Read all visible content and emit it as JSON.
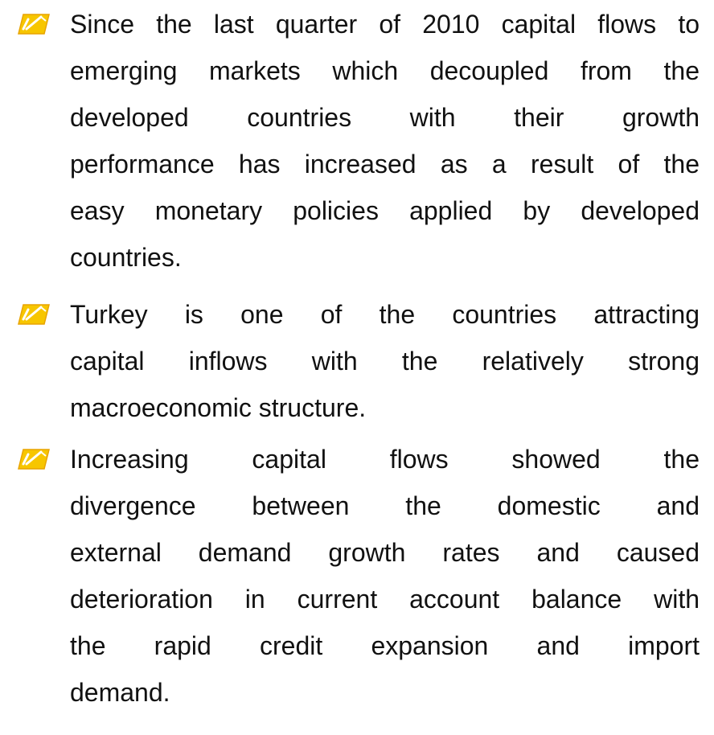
{
  "bullets": [
    {
      "lines": [
        "Since the last quarter of 2010 capital flows to",
        "emerging markets which decoupled from the",
        "developed countries with their growth",
        "performance has increased as a result of the",
        "easy monetary policies applied by developed",
        "countries."
      ]
    },
    {
      "lines": [
        "Turkey is one of the countries attracting",
        "capital inflows with the relatively strong",
        "macroeconomic structure."
      ]
    },
    {
      "lines": [
        "Increasing capital flows showed the",
        "divergence between the domestic and",
        "external demand growth rates and caused",
        "deterioration in current account balance with",
        "the rapid credit expansion and import",
        "demand."
      ]
    }
  ]
}
